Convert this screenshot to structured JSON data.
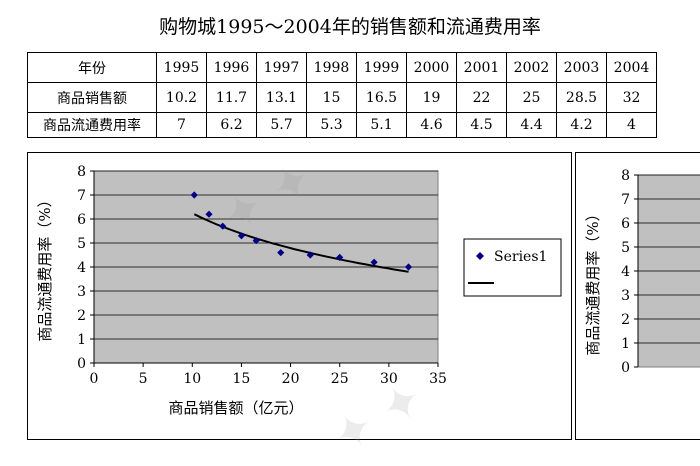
{
  "title": "购物城1995～2004年的销售额和流通费用率",
  "table": {
    "header_label": "年份",
    "years": [
      "1995",
      "1996",
      "1997",
      "1998",
      "1999",
      "2000",
      "2001",
      "2002",
      "2003",
      "2004"
    ],
    "rows": [
      {
        "label": "商品销售额",
        "values": [
          "10.2",
          "11.7",
          "13.1",
          "15",
          "16.5",
          "19",
          "22",
          "25",
          "28.5",
          "32"
        ]
      },
      {
        "label": "商品流通费用率",
        "values": [
          "7",
          "6.2",
          "5.7",
          "5.3",
          "5.1",
          "4.6",
          "4.5",
          "4.4",
          "4.2",
          "4"
        ]
      }
    ]
  },
  "chart_data": [
    {
      "type": "scatter",
      "x": [
        10.2,
        11.7,
        13.1,
        15,
        16.5,
        19,
        22,
        25,
        28.5,
        32
      ],
      "y": [
        7,
        6.2,
        5.7,
        5.3,
        5.1,
        4.6,
        4.5,
        4.4,
        4.2,
        4
      ],
      "trendline": {
        "type": "log",
        "x": [
          10.2,
          32
        ],
        "y": [
          6.2,
          3.8
        ]
      },
      "xlabel": "商品销售额（亿元）",
      "ylabel": "商品流通费用率（%）",
      "xlim": [
        0,
        35
      ],
      "ylim": [
        0,
        8
      ],
      "xticks": [
        "0",
        "5",
        "10",
        "15",
        "20",
        "25",
        "30",
        "35"
      ],
      "yticks": [
        "0",
        "1",
        "2",
        "3",
        "4",
        "5",
        "6",
        "7",
        "8"
      ],
      "grid": true,
      "legend": {
        "placement": "right",
        "entries": [
          "Series1",
          ""
        ]
      },
      "colors": {
        "marker": "#00008B",
        "trend": "#000000",
        "plot_bg": "#C0C0C0"
      }
    },
    {
      "type": "scatter",
      "ylabel": "商品流通费用率（%）",
      "ylim": [
        0,
        8
      ],
      "yticks": [
        "0",
        "1",
        "2",
        "3",
        "4",
        "5",
        "6",
        "7",
        "8"
      ],
      "grid": true
    }
  ]
}
